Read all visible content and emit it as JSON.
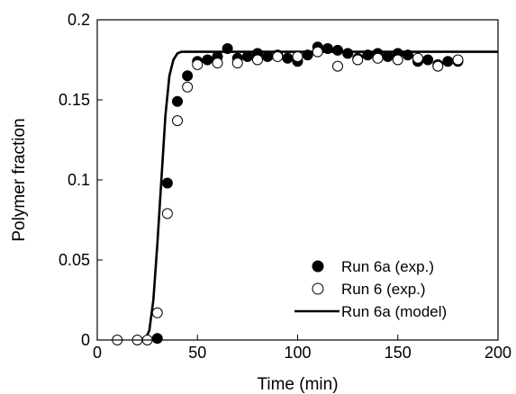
{
  "chart_data": {
    "type": "scatter",
    "title": "",
    "xlabel": "Time (min)",
    "ylabel": "Polymer fraction",
    "xlim": [
      0,
      200
    ],
    "ylim": [
      0,
      0.2
    ],
    "x_ticks": [
      0,
      50,
      100,
      150,
      200
    ],
    "y_ticks": [
      0,
      0.05,
      0.1,
      0.15,
      0.2
    ],
    "x_tick_labels": [
      "0",
      "50",
      "100",
      "150",
      "200"
    ],
    "y_tick_labels": [
      "0",
      "0.05",
      "0.1",
      "0.15",
      "0.2"
    ],
    "grid": false,
    "legend_position": "bottom-right",
    "legend_labels": [
      "Run 6a (exp.)",
      "Run 6  (exp.)",
      "Run 6a  (model)"
    ],
    "series": [
      {
        "name": "Run 6a (exp.)",
        "marker": "filled-circle",
        "color": "#000000",
        "points": [
          [
            30,
            0.001
          ],
          [
            35,
            0.098
          ],
          [
            40,
            0.149
          ],
          [
            45,
            0.165
          ],
          [
            50,
            0.174
          ],
          [
            55,
            0.175
          ],
          [
            60,
            0.177
          ],
          [
            65,
            0.182
          ],
          [
            70,
            0.176
          ],
          [
            75,
            0.177
          ],
          [
            80,
            0.179
          ],
          [
            85,
            0.177
          ],
          [
            90,
            0.178
          ],
          [
            95,
            0.176
          ],
          [
            100,
            0.174
          ],
          [
            105,
            0.178
          ],
          [
            110,
            0.183
          ],
          [
            115,
            0.182
          ],
          [
            120,
            0.181
          ],
          [
            125,
            0.179
          ],
          [
            130,
            0.176
          ],
          [
            135,
            0.178
          ],
          [
            140,
            0.179
          ],
          [
            145,
            0.177
          ],
          [
            150,
            0.179
          ],
          [
            155,
            0.178
          ],
          [
            160,
            0.174
          ],
          [
            165,
            0.175
          ],
          [
            170,
            0.172
          ],
          [
            175,
            0.174
          ],
          [
            180,
            0.174
          ]
        ]
      },
      {
        "name": "Run 6  (exp.)",
        "marker": "open-circle",
        "color": "#000000",
        "points": [
          [
            10,
            0.0
          ],
          [
            20,
            0.0
          ],
          [
            25,
            0.0
          ],
          [
            30,
            0.017
          ],
          [
            35,
            0.079
          ],
          [
            40,
            0.137
          ],
          [
            45,
            0.158
          ],
          [
            50,
            0.172
          ],
          [
            60,
            0.173
          ],
          [
            70,
            0.173
          ],
          [
            80,
            0.175
          ],
          [
            90,
            0.177
          ],
          [
            100,
            0.177
          ],
          [
            110,
            0.18
          ],
          [
            120,
            0.171
          ],
          [
            130,
            0.175
          ],
          [
            140,
            0.176
          ],
          [
            150,
            0.175
          ],
          [
            160,
            0.176
          ],
          [
            170,
            0.171
          ],
          [
            180,
            0.175
          ]
        ]
      },
      {
        "name": "Run 6a  (model)",
        "marker": "line",
        "color": "#000000",
        "points": [
          [
            20,
            0.0
          ],
          [
            24,
            0.0005
          ],
          [
            26,
            0.006
          ],
          [
            28,
            0.025
          ],
          [
            30,
            0.06
          ],
          [
            32,
            0.1
          ],
          [
            34,
            0.14
          ],
          [
            36,
            0.165
          ],
          [
            38,
            0.175
          ],
          [
            40,
            0.179
          ],
          [
            42,
            0.18
          ],
          [
            45,
            0.18
          ],
          [
            60,
            0.18
          ],
          [
            100,
            0.18
          ],
          [
            150,
            0.18
          ],
          [
            180,
            0.18
          ],
          [
            200,
            0.18
          ]
        ]
      }
    ]
  }
}
